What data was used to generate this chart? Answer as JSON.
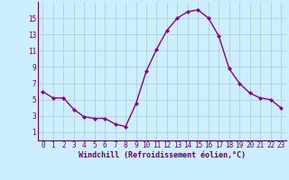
{
  "x": [
    0,
    1,
    2,
    3,
    4,
    5,
    6,
    7,
    8,
    9,
    10,
    11,
    12,
    13,
    14,
    15,
    16,
    17,
    18,
    19,
    20,
    21,
    22,
    23
  ],
  "y": [
    6.0,
    5.2,
    5.2,
    3.8,
    2.9,
    2.7,
    2.7,
    2.0,
    1.7,
    4.5,
    8.5,
    11.2,
    13.5,
    15.0,
    15.8,
    16.0,
    15.0,
    12.8,
    8.8,
    7.0,
    5.8,
    5.2,
    5.0,
    4.0
  ],
  "line_color": "#880088",
  "marker": "D",
  "marker_size": 2.0,
  "background_color": "#cceeff",
  "grid_color": "#aacccc",
  "xlabel": "Windchill (Refroidissement éolien,°C)",
  "ylabel": "",
  "xlim": [
    -0.5,
    23.5
  ],
  "ylim": [
    0,
    17
  ],
  "xticks": [
    0,
    1,
    2,
    3,
    4,
    5,
    6,
    7,
    8,
    9,
    10,
    11,
    12,
    13,
    14,
    15,
    16,
    17,
    18,
    19,
    20,
    21,
    22,
    23
  ],
  "yticks": [
    1,
    3,
    5,
    7,
    9,
    11,
    13,
    15
  ],
  "xlabel_color": "#660066",
  "tick_color": "#660066",
  "font_family": "monospace",
  "tick_fontsize": 5.5,
  "xlabel_fontsize": 6.0
}
